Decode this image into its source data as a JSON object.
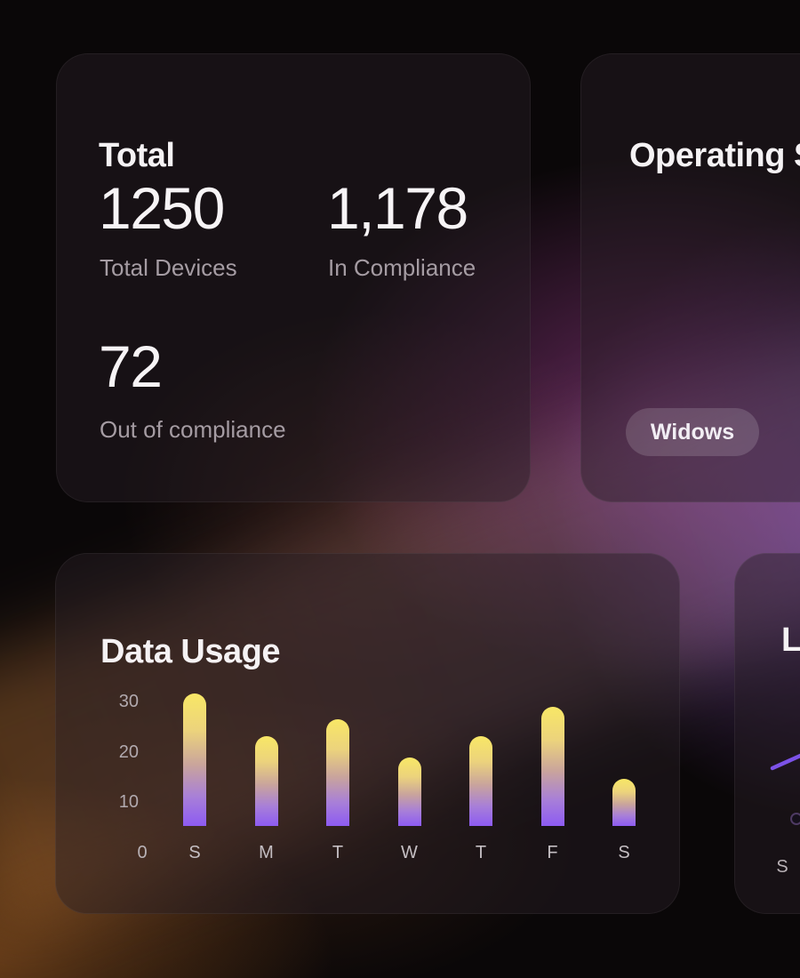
{
  "cards": {
    "total": {
      "title": "Total",
      "stats": [
        {
          "value": "1250",
          "label": "Total Devices"
        },
        {
          "value": "1,178",
          "label": "In Compliance"
        },
        {
          "value": "72",
          "label": "Out of compliance"
        }
      ]
    },
    "operating_systems": {
      "title": "Operating S",
      "badge": "Widows"
    },
    "data_usage": {
      "title": "Data Usage"
    },
    "partial_right": {
      "title": "Lo",
      "x_label": "S"
    }
  },
  "chart_data": [
    {
      "type": "bar",
      "title": "Data Usage",
      "categories": [
        "S",
        "M",
        "T",
        "W",
        "T",
        "F",
        "S"
      ],
      "values": [
        31,
        21,
        25,
        16,
        21,
        28,
        11
      ],
      "yticks": [
        30,
        20,
        10,
        0
      ],
      "xlabel": "",
      "ylabel": "",
      "ylim": [
        0,
        33
      ],
      "grid": false,
      "legend": "none",
      "bar_gradient_top": "#f8e766",
      "bar_gradient_bottom": "#8d5bf2"
    },
    {
      "type": "line",
      "clipped": true,
      "x_labels_visible": [
        "S"
      ],
      "line_color": "#7c52e8"
    }
  ],
  "colors": {
    "accent_yellow": "#f8e766",
    "accent_purple": "#8d5bf2",
    "line_purple": "#7c52e8",
    "glow_magenta": "#a4409a",
    "glow_violet": "#9454d7",
    "glow_orange": "#c8732a",
    "card_fill": "rgba(40,30,38,0.45)",
    "card_border": "rgba(255,255,255,0.055)",
    "pill_fill": "rgba(255,255,255,0.15)",
    "text_primary": "#f5f2f4",
    "text_secondary": "#a59ca3",
    "axis_label": "#b1a9ae"
  }
}
